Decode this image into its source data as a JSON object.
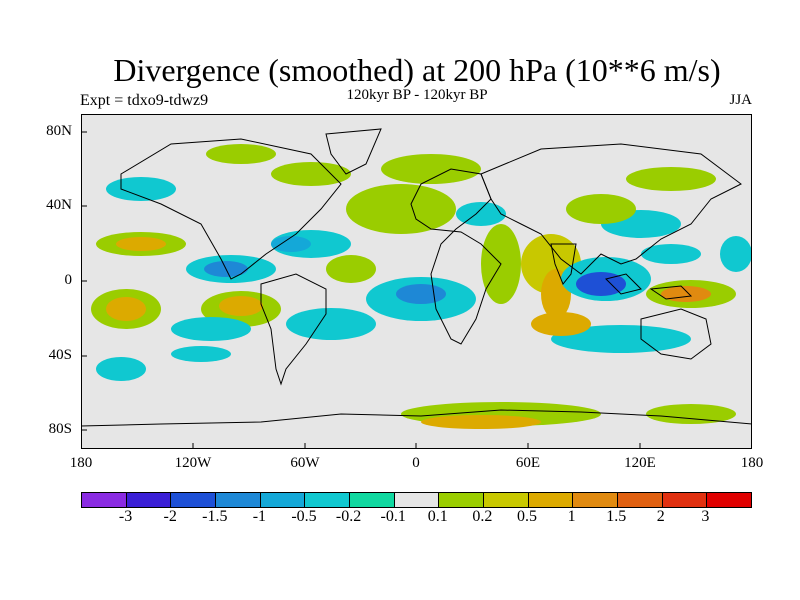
{
  "header": {
    "title": "Divergence (smoothed) at 200 hPa (10**6 m/s)",
    "experiment": "Expt = tdxo9-tdwz9",
    "period": "120kyr BP - 120kyr BP",
    "season": "JJA"
  },
  "axes": {
    "lat_labels": [
      "80N",
      "40N",
      "0",
      "40S",
      "80S"
    ],
    "lon_labels": [
      "180",
      "120W",
      "60W",
      "0",
      "60E",
      "120E",
      "180"
    ]
  },
  "colorbar": {
    "labels": [
      "-3",
      "-2",
      "-1.5",
      "-1",
      "-0.5",
      "-0.2",
      "-0.1",
      "0.1",
      "0.2",
      "0.5",
      "1",
      "1.5",
      "2",
      "3"
    ],
    "colors": [
      "#8a2be2",
      "#3a1fd6",
      "#1e50d6",
      "#1e88d6",
      "#14a8d8",
      "#10c8d0",
      "#10d8a0",
      "#e6e6e6",
      "#9acd00",
      "#c8c800",
      "#dcaa00",
      "#e08a10",
      "#e06010",
      "#e03010",
      "#e00000"
    ]
  },
  "colors": {
    "background": "#e6e6e6",
    "coast": "#000000"
  }
}
